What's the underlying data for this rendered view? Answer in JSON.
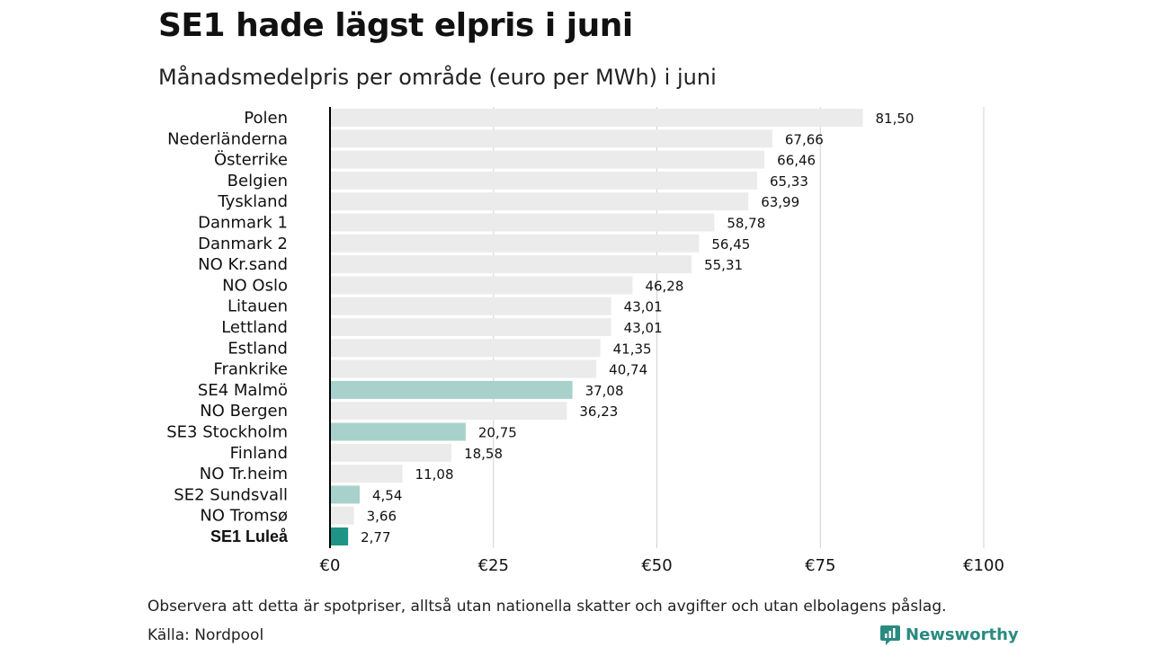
{
  "title": "SE1 hade lägst elpris i juni",
  "subtitle": "Månadsmedelpris per område (euro per MWh) i juni",
  "note": "Observera att detta är spotpriser, alltså utan nationella skatter och avgifter och utan elbolagens påslag.",
  "source": "Källa: Nordpool",
  "logo": {
    "text": "Newsworthy",
    "icon": "newsworthy-logo-icon"
  },
  "colors": {
    "default": "#ebebeb",
    "highlight": "#a8d1cc",
    "focus": "#1e9486",
    "grid": "#d0d0d0",
    "axis": "#000000"
  },
  "chart_data": {
    "type": "bar",
    "orientation": "horizontal",
    "categories": [
      "Polen",
      "Nederländerna",
      "Österrike",
      "Belgien",
      "Tyskland",
      "Danmark  1",
      "Danmark  2",
      "NO Kr.sand",
      "NO Oslo",
      "Litauen",
      "Lettland",
      "Estland",
      "Frankrike",
      "SE4  Malmö",
      "NO Bergen",
      "SE3  Stockholm",
      "Finland",
      "NO Tr.heim",
      "SE2  Sundsvall",
      "NO Tromsø",
      "SE1 Luleå"
    ],
    "values": [
      81.5,
      67.66,
      66.46,
      65.33,
      63.99,
      58.78,
      56.45,
      55.31,
      46.28,
      43.01,
      43.01,
      41.35,
      40.74,
      37.08,
      36.23,
      20.75,
      18.58,
      11.08,
      4.54,
      3.66,
      2.77
    ],
    "value_labels": [
      "81,50",
      "67,66",
      "66,46",
      "65,33",
      "63,99",
      "58,78",
      "56,45",
      "55,31",
      "46,28",
      "43,01",
      "43,01",
      "41,35",
      "40,74",
      "37,08",
      "36,23",
      "20,75",
      "18,58",
      "11,08",
      "4,54",
      "3,66",
      "2,77"
    ],
    "highlight": [
      "none",
      "none",
      "none",
      "none",
      "none",
      "none",
      "none",
      "none",
      "none",
      "none",
      "none",
      "none",
      "none",
      "se",
      "none",
      "se",
      "none",
      "none",
      "se",
      "none",
      "focus"
    ],
    "xticks": [
      "€0",
      "€25",
      "€50",
      "€75",
      "€100"
    ],
    "xtick_values": [
      0,
      25,
      50,
      75,
      100
    ],
    "xlim": [
      0,
      100
    ],
    "grid": true
  }
}
